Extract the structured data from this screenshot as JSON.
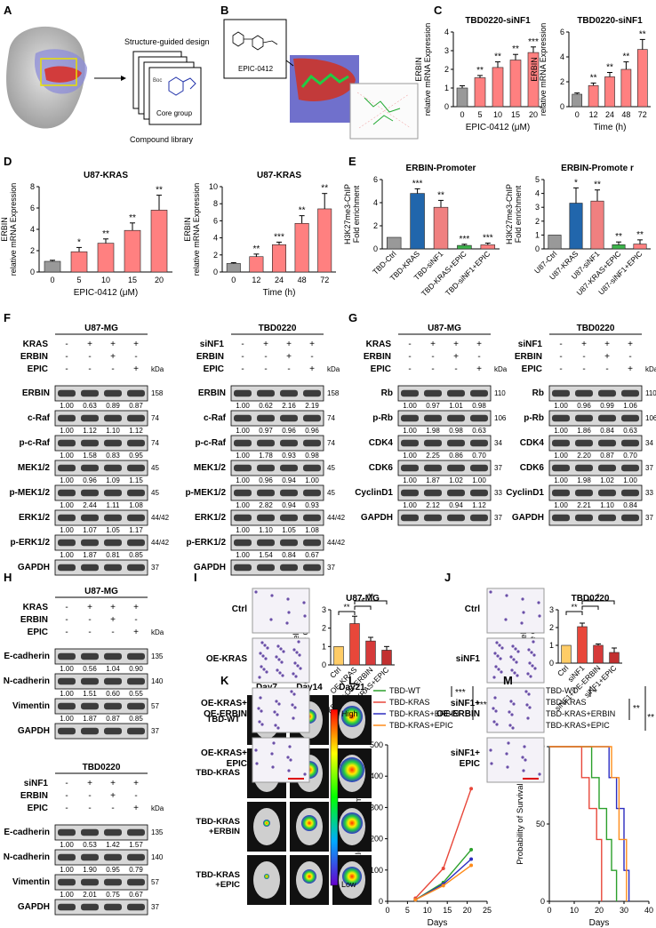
{
  "panels": {
    "A": {
      "letter": "A",
      "design_label": "Structure-guided design",
      "boc": "Boc",
      "core": "Core group",
      "library": "Compound library"
    },
    "B": {
      "letter": "B",
      "compound": "EPIC-0412"
    },
    "C": {
      "letter": "C"
    },
    "D": {
      "letter": "D"
    },
    "E": {
      "letter": "E"
    },
    "F": {
      "letter": "F"
    },
    "G": {
      "letter": "G"
    },
    "H": {
      "letter": "H"
    },
    "I": {
      "letter": "I"
    },
    "J": {
      "letter": "J"
    },
    "K": {
      "letter": "K"
    },
    "L": {
      "letter": "L"
    },
    "M": {
      "letter": "M"
    }
  },
  "chart_data": [
    {
      "id": "C1",
      "type": "bar",
      "title": "TBD0220-siNF1",
      "ylabel": "ERBIN relative mRNA Expression",
      "xlabel": "EPIC-0412 (μM)",
      "categories": [
        "0",
        "5",
        "10",
        "15",
        "20"
      ],
      "values": [
        1.0,
        1.55,
        2.1,
        2.5,
        2.9
      ],
      "errors": [
        0.12,
        0.12,
        0.3,
        0.3,
        0.3
      ],
      "sig": [
        "",
        "**",
        "**",
        "**",
        "***"
      ],
      "ylim": [
        0,
        4
      ],
      "yticks": [
        "0",
        "1",
        "2",
        "3",
        "4"
      ]
    },
    {
      "id": "C2",
      "type": "bar",
      "title": "TBD0220-siNF1",
      "ylabel": "ERBIN relative mRNA Expression",
      "xlabel": "Time (h)",
      "categories": [
        "0",
        "12",
        "24",
        "48",
        "72"
      ],
      "values": [
        1.0,
        1.7,
        2.4,
        3.0,
        4.6
      ],
      "errors": [
        0.1,
        0.2,
        0.35,
        0.6,
        0.8
      ],
      "sig": [
        "",
        "**",
        "**",
        "**",
        "**"
      ],
      "ylim": [
        0,
        6
      ],
      "yticks": [
        "0",
        "2",
        "4",
        "6"
      ]
    },
    {
      "id": "D1",
      "type": "bar",
      "title": "U87-KRAS",
      "ylabel": "ERBIN relative mRNA Expression",
      "xlabel": "EPIC-0412 (μM)",
      "categories": [
        "0",
        "5",
        "10",
        "15",
        "20"
      ],
      "values": [
        1.0,
        1.9,
        2.7,
        3.9,
        5.8
      ],
      "errors": [
        0.1,
        0.4,
        0.4,
        0.7,
        1.4
      ],
      "sig": [
        "",
        "*",
        "**",
        "**",
        "**"
      ],
      "ylim": [
        0,
        8
      ],
      "yticks": [
        "0",
        "2",
        "4",
        "6",
        "8"
      ]
    },
    {
      "id": "D2",
      "type": "bar",
      "title": "U87-KRAS",
      "ylabel": "ERBIN relative mRNA Expression",
      "xlabel": "Time (h)",
      "categories": [
        "0",
        "12",
        "24",
        "48",
        "72"
      ],
      "values": [
        1.0,
        1.8,
        3.2,
        5.7,
        7.4
      ],
      "errors": [
        0.1,
        0.3,
        0.3,
        0.9,
        1.8
      ],
      "sig": [
        "",
        "**",
        "***",
        "**",
        "**"
      ],
      "ylim": [
        0,
        10
      ],
      "yticks": [
        "0",
        "2",
        "4",
        "6",
        "8",
        "10"
      ]
    },
    {
      "id": "E1",
      "type": "bar",
      "title": "ERBIN-Promoter",
      "ylabel": "H3K27me3-ChIP Fold enrichment",
      "xlabel": "",
      "categories": [
        "TBD-Ctrl",
        "TBD-KRAS",
        "TBD-siNF1",
        "TBD-KRAS+EPIC",
        "TBD-siNF1+EPIC"
      ],
      "values": [
        1.0,
        4.8,
        3.6,
        0.3,
        0.35
      ],
      "errors": [
        0,
        0.4,
        0.6,
        0.1,
        0.15
      ],
      "sig": [
        "",
        "***",
        "**",
        "***",
        "***"
      ],
      "ylim": [
        0,
        6
      ],
      "yticks": [
        "0",
        "2",
        "4",
        "6"
      ]
    },
    {
      "id": "E2",
      "type": "bar",
      "title": "ERBIN-Promote r",
      "ylabel": "H3K27me3-ChIP Fold enrichment",
      "xlabel": "",
      "categories": [
        "U87-Ctrl",
        "U87-KRAS",
        "U87-siNF1",
        "U87-KRAS+EPIC",
        "U87-siNF1+EPIC"
      ],
      "values": [
        1.0,
        3.3,
        3.45,
        0.3,
        0.35
      ],
      "errors": [
        0,
        1.1,
        0.8,
        0.2,
        0.3
      ],
      "sig": [
        "",
        "*",
        "**",
        "**",
        "**"
      ],
      "ylim": [
        0,
        5
      ],
      "yticks": [
        "0",
        "1",
        "2",
        "3",
        "4",
        "5"
      ]
    },
    {
      "id": "I",
      "type": "bar",
      "title": "U87-MG",
      "ylabel": "Relative cell invasion (Fold change over control)",
      "xlabel": "",
      "categories": [
        "Ctrl",
        "OE-KRAS",
        "OE-KRAS+OE-ERBIN",
        "OE-KRAS+EPIC"
      ],
      "values": [
        1.0,
        2.25,
        1.3,
        0.8
      ],
      "errors": [
        0,
        0.4,
        0.2,
        0.2
      ],
      "sig": [
        "",
        "",
        "",
        ""
      ],
      "ylim": [
        0,
        3
      ],
      "yticks": [
        "0",
        "1",
        "2",
        "3"
      ]
    },
    {
      "id": "J",
      "type": "bar",
      "title": "TBD0220",
      "ylabel": "Relative cell invasion (Fold change over control)",
      "xlabel": "",
      "categories": [
        "Ctrl",
        "siNF1",
        "siNF1+OE-ERBIN",
        "siNF1+EPIC"
      ],
      "values": [
        1.0,
        2.05,
        1.0,
        0.6
      ],
      "errors": [
        0,
        0.2,
        0.08,
        0.25
      ],
      "sig": [
        "",
        "",
        "",
        ""
      ],
      "ylim": [
        0,
        3
      ],
      "yticks": [
        "0",
        "1",
        "2",
        "3"
      ]
    },
    {
      "id": "L",
      "type": "line",
      "title": "",
      "ylabel": "BLI(x10⁶ p/sec/cm²/sr)",
      "xlabel": "Days",
      "series": [
        {
          "name": "TBD-WT",
          "x": [
            7,
            14,
            21
          ],
          "y": [
            5,
            60,
            165
          ]
        },
        {
          "name": "TBD-KRAS",
          "x": [
            7,
            14,
            21
          ],
          "y": [
            10,
            105,
            360
          ]
        },
        {
          "name": "TBD-KRAS+ERBIN",
          "x": [
            7,
            14,
            21
          ],
          "y": [
            5,
            55,
            135
          ]
        },
        {
          "name": "TBD-KRAS+EPIC",
          "x": [
            7,
            14,
            21
          ],
          "y": [
            5,
            50,
            115
          ]
        }
      ],
      "xlim": [
        0,
        25
      ],
      "ylim": [
        0,
        500
      ],
      "xticks": [
        "0",
        "5",
        "10",
        "15",
        "20",
        "25"
      ],
      "yticks": [
        "0",
        "100",
        "200",
        "300",
        "400",
        "500"
      ]
    },
    {
      "id": "M",
      "type": "line",
      "title": "",
      "ylabel": "Probability of Survival",
      "xlabel": "Days",
      "series": [
        {
          "name": "TBD-WT",
          "x": [
            0,
            14,
            17,
            20,
            23,
            25,
            27
          ],
          "y": [
            100,
            100,
            80,
            60,
            40,
            20,
            0
          ]
        },
        {
          "name": "TBD-KRAS",
          "x": [
            0,
            10,
            13,
            16,
            19,
            21
          ],
          "y": [
            100,
            100,
            80,
            60,
            40,
            0
          ]
        },
        {
          "name": "TBD-KRAS+ERBIN",
          "x": [
            0,
            20,
            24,
            27,
            30,
            32
          ],
          "y": [
            100,
            100,
            80,
            60,
            20,
            0
          ]
        },
        {
          "name": "TBD-KRAS+EPIC",
          "x": [
            0,
            22,
            25,
            28,
            31
          ],
          "y": [
            100,
            100,
            80,
            40,
            0
          ]
        }
      ],
      "xlim": [
        0,
        40
      ],
      "ylim": [
        0,
        100
      ],
      "xticks": [
        "0",
        "10",
        "20",
        "30",
        "40"
      ],
      "yticks": [
        "0",
        "50",
        "100"
      ]
    }
  ],
  "legends": {
    "L": {
      "items": [
        "TBD-WT",
        "TBD-KRAS",
        "TBD-KRAS+ERBIN",
        "TBD-KRAS+EPIC"
      ],
      "sig": [
        "***",
        "***",
        "***"
      ]
    },
    "M": {
      "items": [
        "TBD-WT",
        "TBD-KRAS",
        "TBD-KRAS+ERBIN",
        "TBD-KRAS+EPIC"
      ],
      "sig": [
        "*",
        "**",
        "**"
      ]
    }
  },
  "blots": {
    "F1": {
      "title": "U87-MG",
      "treat": [
        [
          "KRAS",
          "-",
          "+",
          "+",
          "+"
        ],
        [
          "ERBIN",
          "-",
          "-",
          "+",
          "-"
        ],
        [
          "EPIC",
          "-",
          "-",
          "-",
          "+"
        ]
      ],
      "rows": [
        [
          "ERBIN",
          "158",
          [
            "1.00",
            "0.63",
            "0.89",
            "0.87"
          ]
        ],
        [
          "c-Raf",
          "74",
          null
        ],
        [
          "",
          "",
          [
            "1.00",
            "1.12",
            "1.10",
            "1.12"
          ]
        ],
        [
          "p-c-Raf",
          "74",
          null
        ],
        [
          "",
          "",
          [
            "1.00",
            "1.58",
            "0.83",
            "0.95"
          ]
        ],
        [
          "MEK1/2",
          "45",
          null
        ],
        [
          "",
          "",
          [
            "1.00",
            "0.96",
            "1.09",
            "1.15"
          ]
        ],
        [
          "p-MEK1/2",
          "45",
          null
        ],
        [
          "",
          "",
          [
            "1.00",
            "2.44",
            "1.11",
            "1.08"
          ]
        ],
        [
          "ERK1/2",
          "44/42",
          null
        ],
        [
          "",
          "",
          [
            "1.00",
            "1.07",
            "1.05",
            "1.17"
          ]
        ],
        [
          "p-ERK1/2",
          "44/42",
          null
        ],
        [
          "",
          "",
          [
            "1.00",
            "1.87",
            "0.81",
            "0.85"
          ]
        ],
        [
          "GAPDH",
          "37",
          null
        ]
      ]
    },
    "F2": {
      "title": "TBD0220",
      "treat": [
        [
          "siNF1",
          "-",
          "+",
          "+",
          "+"
        ],
        [
          "ERBIN",
          "-",
          "-",
          "+",
          "-"
        ],
        [
          "EPIC",
          "-",
          "-",
          "-",
          "+"
        ]
      ],
      "rows": [
        [
          "ERBIN",
          "158",
          [
            "1.00",
            "0.62",
            "2.16",
            "2.19"
          ]
        ],
        [
          "c-Raf",
          "74",
          null
        ],
        [
          "",
          "",
          [
            "1.00",
            "0.97",
            "0.96",
            "0.96"
          ]
        ],
        [
          "p-c-Raf",
          "74",
          null
        ],
        [
          "",
          "",
          [
            "1.00",
            "1.78",
            "0.93",
            "0.98"
          ]
        ],
        [
          "MEK1/2",
          "45",
          null
        ],
        [
          "",
          "",
          [
            "1.00",
            "0.96",
            "0.94",
            "1.00"
          ]
        ],
        [
          "p-MEK1/2",
          "45",
          null
        ],
        [
          "",
          "",
          [
            "1.00",
            "2.82",
            "0.94",
            "0.93"
          ]
        ],
        [
          "ERK1/2",
          "44/42",
          null
        ],
        [
          "",
          "",
          [
            "1.00",
            "1.10",
            "1.05",
            "1.08"
          ]
        ],
        [
          "p-ERK1/2",
          "44/42",
          null
        ],
        [
          "",
          "",
          [
            "1.00",
            "1.54",
            "0.84",
            "0.67"
          ]
        ],
        [
          "GAPDH",
          "37",
          null
        ]
      ]
    },
    "G1": {
      "title": "U87-MG",
      "treat": [
        [
          "KRAS",
          "-",
          "+",
          "+",
          "+"
        ],
        [
          "ERBIN",
          "-",
          "-",
          "+",
          "-"
        ],
        [
          "EPIC",
          "-",
          "-",
          "-",
          "+"
        ]
      ],
      "rows": [
        [
          "Rb",
          "110",
          null
        ],
        [
          "",
          "",
          [
            "1.00",
            "0.97",
            "1.01",
            "0.98"
          ]
        ],
        [
          "p-Rb",
          "106",
          null
        ],
        [
          "",
          "",
          [
            "1.00",
            "1.98",
            "0.98",
            "0.63"
          ]
        ],
        [
          "CDK4",
          "34",
          null
        ],
        [
          "",
          "",
          [
            "1.00",
            "2.25",
            "0.86",
            "0.70"
          ]
        ],
        [
          "CDK6",
          "37",
          null
        ],
        [
          "",
          "",
          [
            "1.00",
            "1.87",
            "1.02",
            "1.00"
          ]
        ],
        [
          "CyclinD1",
          "33",
          null
        ],
        [
          "",
          "",
          [
            "1.00",
            "2.12",
            "0.94",
            "1.12"
          ]
        ],
        [
          "GAPDH",
          "37",
          null
        ]
      ]
    },
    "G2": {
      "title": "TBD0220",
      "treat": [
        [
          "siNF1",
          "-",
          "+",
          "+",
          "+"
        ],
        [
          "ERBIN",
          "-",
          "-",
          "+",
          "-"
        ],
        [
          "EPIC",
          "-",
          "-",
          "-",
          "+"
        ]
      ],
      "rows": [
        [
          "Rb",
          "110",
          null
        ],
        [
          "",
          "",
          [
            "1.00",
            "0.96",
            "0.99",
            "1.06"
          ]
        ],
        [
          "p-Rb",
          "106",
          null
        ],
        [
          "",
          "",
          [
            "1.00",
            "1.86",
            "0.84",
            "0.63"
          ]
        ],
        [
          "CDK4",
          "34",
          null
        ],
        [
          "",
          "",
          [
            "1.00",
            "2.20",
            "0.87",
            "0.70"
          ]
        ],
        [
          "CDK6",
          "37",
          null
        ],
        [
          "",
          "",
          [
            "1.00",
            "1.98",
            "1.02",
            "1.00"
          ]
        ],
        [
          "CyclinD1",
          "33",
          null
        ],
        [
          "",
          "",
          [
            "1.00",
            "2.21",
            "1.10",
            "0.84"
          ]
        ],
        [
          "GAPDH",
          "37",
          null
        ]
      ]
    },
    "H1": {
      "title": "U87-MG",
      "treat": [
        [
          "KRAS",
          "-",
          "+",
          "+",
          "+"
        ],
        [
          "ERBIN",
          "-",
          "-",
          "+",
          "-"
        ],
        [
          "EPIC",
          "-",
          "-",
          "-",
          "+"
        ]
      ],
      "rows": [
        [
          "E-cadherin",
          "135",
          null
        ],
        [
          "",
          "",
          [
            "1.00",
            "0.56",
            "1.04",
            "0.90"
          ]
        ],
        [
          "N-cadherin",
          "140",
          null
        ],
        [
          "",
          "",
          [
            "1.00",
            "1.51",
            "0.60",
            "0.55"
          ]
        ],
        [
          "Vimentin",
          "57",
          null
        ],
        [
          "",
          "",
          [
            "1.00",
            "1.87",
            "0.87",
            "0.85"
          ]
        ],
        [
          "GAPDH",
          "37",
          null
        ]
      ]
    },
    "H2": {
      "title": "TBD0220",
      "treat": [
        [
          "siNF1",
          "-",
          "+",
          "+",
          "+"
        ],
        [
          "ERBIN",
          "-",
          "-",
          "+",
          "-"
        ],
        [
          "EPIC",
          "-",
          "-",
          "-",
          "+"
        ]
      ],
      "rows": [
        [
          "E-cadherin",
          "135",
          null
        ],
        [
          "",
          "",
          [
            "1.00",
            "0.53",
            "1.42",
            "1.57"
          ]
        ],
        [
          "N-cadherin",
          "140",
          null
        ],
        [
          "",
          "",
          [
            "1.00",
            "1.90",
            "0.95",
            "0.79"
          ]
        ],
        [
          "Vimentin",
          "57",
          null
        ],
        [
          "",
          "",
          [
            "1.00",
            "2.01",
            "0.75",
            "0.67"
          ]
        ],
        [
          "GAPDH",
          "37",
          null
        ]
      ]
    }
  },
  "kda": "kDa",
  "invasion": {
    "I": {
      "labels": [
        "Ctrl",
        "OE-KRAS",
        "OE-KRAS+ OE-ERBIN",
        "OE-KRAS+ EPIC"
      ],
      "sig": [
        "**",
        "*",
        "**"
      ]
    },
    "J": {
      "labels": [
        "Ctrl",
        "siNF1",
        "siNF1+ OE-ERBIN",
        "siNF1+ EPIC"
      ],
      "sig": [
        "**",
        "**",
        "*"
      ]
    }
  },
  "imaging": {
    "days": [
      "Day7",
      "Day14",
      "Day21"
    ],
    "groups": [
      "TBD-WT",
      "TBD-KRAS",
      "TBD-KRAS +ERBIN",
      "TBD-KRAS +EPIC"
    ],
    "scale_high": "High",
    "scale_low": "Low"
  },
  "colors": {
    "gray": "#999999",
    "red": "#f08080",
    "blue": "#2166ac",
    "green": "#3cb44b",
    "bar_red": "#ff8080",
    "l_wt": "#2ca02c",
    "l_kras": "#e8473a",
    "l_erbin": "#2c2cbf",
    "l_epic": "#ff8c1a"
  }
}
